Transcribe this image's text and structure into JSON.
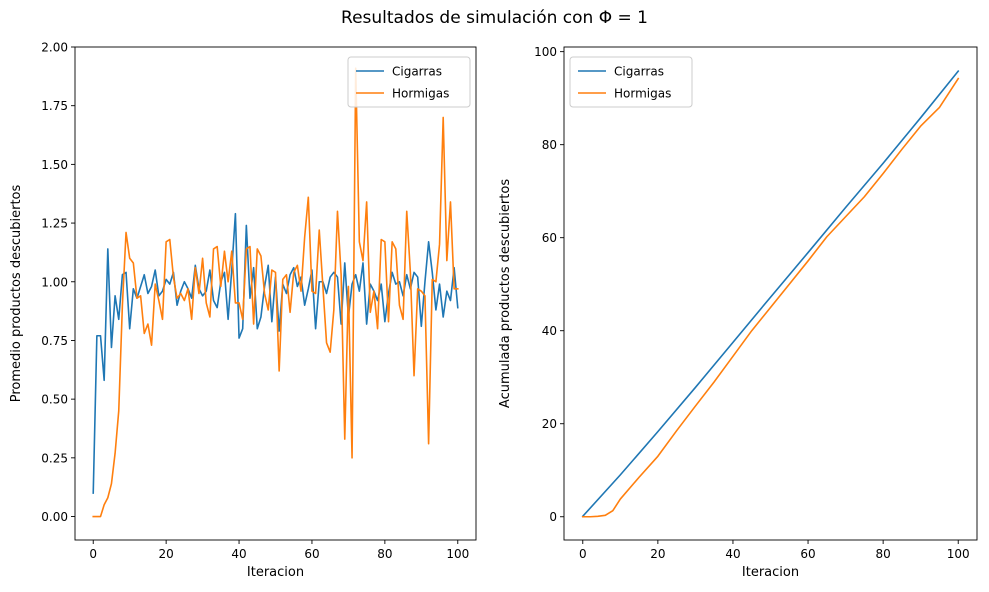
{
  "figure": {
    "title": "Resultados de simulación con Φ = 1"
  },
  "chart_data": [
    {
      "type": "line",
      "title": "",
      "xlabel": "Iteracion",
      "ylabel": "Promedio productos descubiertos",
      "xlim": [
        -5,
        105
      ],
      "ylim": [
        -0.1,
        2.0
      ],
      "xticks": [
        0,
        20,
        40,
        60,
        80,
        100
      ],
      "xtick_labels": [
        "0",
        "20",
        "40",
        "60",
        "80",
        "100"
      ],
      "yticks": [
        0.0,
        0.25,
        0.5,
        0.75,
        1.0,
        1.25,
        1.5,
        1.75,
        2.0
      ],
      "ytick_labels": [
        "0.00",
        "0.25",
        "0.50",
        "0.75",
        "1.00",
        "1.25",
        "1.50",
        "1.75",
        "2.00"
      ],
      "grid": false,
      "legend_position": "top-right",
      "series": [
        {
          "name": "Cigarras",
          "color": "#1f77b4",
          "x": [
            0,
            1,
            2,
            3,
            4,
            5,
            6,
            7,
            8,
            9,
            10,
            11,
            12,
            13,
            14,
            15,
            16,
            17,
            18,
            19,
            20,
            21,
            22,
            23,
            24,
            25,
            26,
            27,
            28,
            29,
            30,
            31,
            32,
            33,
            34,
            35,
            36,
            37,
            38,
            39,
            40,
            41,
            42,
            43,
            44,
            45,
            46,
            47,
            48,
            49,
            50,
            51,
            52,
            53,
            54,
            55,
            56,
            57,
            58,
            59,
            60,
            61,
            62,
            63,
            64,
            65,
            66,
            67,
            68,
            69,
            70,
            71,
            72,
            73,
            74,
            75,
            76,
            77,
            78,
            79,
            80,
            81,
            82,
            83,
            84,
            85,
            86,
            87,
            88,
            89,
            90,
            91,
            92,
            93,
            94,
            95,
            96,
            97,
            98,
            99,
            100
          ],
          "values": [
            0.1,
            0.77,
            0.77,
            0.58,
            1.14,
            0.72,
            0.94,
            0.84,
            1.03,
            1.04,
            0.8,
            0.97,
            0.93,
            0.98,
            1.03,
            0.95,
            0.98,
            1.05,
            0.94,
            0.96,
            1.01,
            0.99,
            1.04,
            0.9,
            0.96,
            1.0,
            0.97,
            0.93,
            1.07,
            0.97,
            0.94,
            0.96,
            1.05,
            0.92,
            0.89,
            1.0,
            1.04,
            0.84,
            1.05,
            1.29,
            0.76,
            0.8,
            1.24,
            0.93,
            1.06,
            0.8,
            0.85,
            0.98,
            1.07,
            0.83,
            1.02,
            0.79,
            0.99,
            0.95,
            1.03,
            1.06,
            0.98,
            1.02,
            0.9,
            0.97,
            1.05,
            0.8,
            1.0,
            1.0,
            0.95,
            1.02,
            1.04,
            1.02,
            0.82,
            1.08,
            0.85,
            0.99,
            1.03,
            0.96,
            1.08,
            0.82,
            0.99,
            0.96,
            0.92,
            0.99,
            0.83,
            0.95,
            1.04,
            0.99,
            1.0,
            0.94,
            1.03,
            0.97,
            1.04,
            1.02,
            0.81,
            1.0,
            1.17,
            1.04,
            0.88,
            0.99,
            0.85,
            0.96,
            0.92,
            1.06,
            0.89
          ],
          "y": [
            0.1,
            0.77,
            0.77,
            0.58,
            1.14,
            0.72,
            0.94,
            0.84,
            1.03,
            1.04,
            0.8,
            0.97,
            0.93,
            0.98,
            1.03,
            0.95,
            0.98,
            1.05,
            0.94,
            0.96,
            1.01,
            0.99,
            1.04,
            0.9,
            0.96,
            1.0,
            0.97,
            0.93,
            1.07,
            0.97,
            0.94,
            0.96,
            1.05,
            0.92,
            0.89,
            1.0,
            1.04,
            0.84,
            1.05,
            1.29,
            0.76,
            0.8,
            1.24,
            0.93,
            1.06,
            0.8,
            0.85,
            0.98,
            1.07,
            0.83,
            1.02,
            0.79,
            0.99,
            0.95,
            1.03,
            1.06,
            0.98,
            1.02,
            0.9,
            0.97,
            1.05,
            0.8,
            1.0,
            1.0,
            0.95,
            1.02,
            1.04,
            1.02,
            0.82,
            1.08,
            0.85,
            0.99,
            1.03,
            0.96,
            1.08,
            0.82,
            0.99,
            0.96,
            0.92,
            0.99,
            0.83,
            0.95,
            1.04,
            0.99,
            1.0,
            0.94,
            1.03,
            0.97,
            1.04,
            1.02,
            0.81,
            1.0,
            1.17,
            1.04,
            0.88,
            0.99,
            0.85,
            0.96,
            0.92,
            1.06,
            0.89
          ]
        },
        {
          "name": "Hormigas",
          "color": "#ff7f0e",
          "x": [
            0,
            1,
            2,
            3,
            4,
            5,
            6,
            7,
            8,
            9,
            10,
            11,
            12,
            13,
            14,
            15,
            16,
            17,
            18,
            19,
            20,
            21,
            22,
            23,
            24,
            25,
            26,
            27,
            28,
            29,
            30,
            31,
            32,
            33,
            34,
            35,
            36,
            37,
            38,
            39,
            40,
            41,
            42,
            43,
            44,
            45,
            46,
            47,
            48,
            49,
            50,
            51,
            52,
            53,
            54,
            55,
            56,
            57,
            58,
            59,
            60,
            61,
            62,
            63,
            64,
            65,
            66,
            67,
            68,
            69,
            70,
            71,
            72,
            73,
            74,
            75,
            76,
            77,
            78,
            79,
            80,
            81,
            82,
            83,
            84,
            85,
            86,
            87,
            88,
            89,
            90,
            91,
            92,
            93,
            94,
            95,
            96,
            97,
            98,
            99,
            100
          ],
          "values": [
            0.0,
            0.0,
            0.0,
            0.05,
            0.08,
            0.14,
            0.27,
            0.45,
            0.9,
            1.21,
            1.1,
            1.08,
            0.93,
            0.94,
            0.78,
            0.82,
            0.73,
            0.99,
            0.92,
            0.84,
            1.17,
            1.18,
            1.02,
            0.93,
            0.95,
            0.92,
            0.97,
            0.84,
            1.06,
            0.95,
            1.1,
            0.91,
            0.85,
            1.14,
            1.15,
            0.98,
            1.13,
            1.0,
            1.13,
            0.91,
            0.91,
            0.84,
            1.14,
            1.15,
            0.82,
            1.14,
            1.11,
            0.95,
            0.88,
            1.05,
            1.04,
            0.62,
            1.01,
            1.03,
            0.87,
            1.04,
            1.07,
            0.96,
            1.19,
            1.36,
            0.96,
            0.95,
            1.22,
            0.98,
            0.74,
            0.7,
            0.88,
            1.3,
            1.03,
            0.33,
            0.98,
            0.25,
            1.91,
            1.17,
            1.09,
            1.34,
            0.87,
            0.96,
            0.8,
            1.18,
            1.17,
            0.83,
            1.17,
            1.14,
            0.9,
            0.84,
            1.3,
            1.04,
            0.6,
            0.97,
            0.96,
            0.94,
            0.31,
            1.01,
            1.0,
            1.16,
            1.7,
            1.09,
            1.34,
            0.97,
            0.97
          ],
          "y": [
            0.0,
            0.0,
            0.0,
            0.05,
            0.08,
            0.14,
            0.27,
            0.45,
            0.9,
            1.21,
            1.1,
            1.08,
            0.93,
            0.94,
            0.78,
            0.82,
            0.73,
            0.99,
            0.92,
            0.84,
            1.17,
            1.18,
            1.02,
            0.93,
            0.95,
            0.92,
            0.97,
            0.84,
            1.06,
            0.95,
            1.1,
            0.91,
            0.85,
            1.14,
            1.15,
            0.98,
            1.13,
            1.0,
            1.13,
            0.91,
            0.91,
            0.84,
            1.14,
            1.15,
            0.82,
            1.14,
            1.11,
            0.95,
            0.88,
            1.05,
            1.04,
            0.62,
            1.01,
            1.03,
            0.87,
            1.04,
            1.07,
            0.96,
            1.19,
            1.36,
            0.96,
            0.95,
            1.22,
            0.98,
            0.74,
            0.7,
            0.88,
            1.3,
            1.03,
            0.33,
            0.98,
            0.25,
            1.91,
            1.17,
            1.09,
            1.34,
            0.87,
            0.96,
            0.8,
            1.18,
            1.17,
            0.83,
            1.17,
            1.14,
            0.9,
            0.84,
            1.3,
            1.04,
            0.6,
            0.97,
            0.96,
            0.94,
            0.31,
            1.01,
            1.0,
            1.16,
            1.7,
            1.09,
            1.34,
            0.97,
            0.97
          ]
        }
      ]
    },
    {
      "type": "line",
      "title": "",
      "xlabel": "Iteracion",
      "ylabel": "Acumulada productos descubiertos",
      "xlim": [
        -5,
        105
      ],
      "ylim": [
        -5,
        101
      ],
      "xticks": [
        0,
        20,
        40,
        60,
        80,
        100
      ],
      "xtick_labels": [
        "0",
        "20",
        "40",
        "60",
        "80",
        "100"
      ],
      "yticks": [
        0,
        20,
        40,
        60,
        80,
        100
      ],
      "ytick_labels": [
        "0",
        "20",
        "40",
        "60",
        "80",
        "100"
      ],
      "grid": false,
      "legend_position": "top-left",
      "series": [
        {
          "name": "Cigarras",
          "color": "#1f77b4",
          "x": [
            0,
            10,
            20,
            30,
            40,
            50,
            60,
            70,
            80,
            90,
            100
          ],
          "values": [
            0.1,
            9.0,
            18.3,
            27.8,
            37.5,
            47.2,
            56.8,
            66.5,
            76.0,
            85.8,
            95.8
          ],
          "y": [
            0.1,
            9.0,
            18.3,
            27.8,
            37.5,
            47.2,
            56.8,
            66.5,
            76.0,
            85.8,
            95.8
          ]
        },
        {
          "name": "Hormigas",
          "color": "#ff7f0e",
          "x": [
            0,
            2,
            4,
            6,
            8,
            10,
            15,
            20,
            25,
            30,
            35,
            40,
            45,
            50,
            55,
            60,
            65,
            70,
            75,
            80,
            85,
            90,
            95,
            100
          ],
          "values": [
            0.0,
            0.0,
            0.1,
            0.3,
            1.3,
            3.8,
            8.5,
            13.0,
            18.5,
            23.8,
            29.0,
            34.5,
            40.0,
            45.0,
            50.0,
            55.0,
            60.2,
            64.5,
            68.8,
            73.8,
            79.0,
            84.0,
            88.0,
            94.2
          ],
          "y": [
            0.0,
            0.0,
            0.1,
            0.3,
            1.3,
            3.8,
            8.5,
            13.0,
            18.5,
            23.8,
            29.0,
            34.5,
            40.0,
            45.0,
            50.0,
            55.0,
            60.2,
            64.5,
            68.8,
            73.8,
            79.0,
            84.0,
            88.0,
            94.2
          ]
        }
      ]
    }
  ]
}
